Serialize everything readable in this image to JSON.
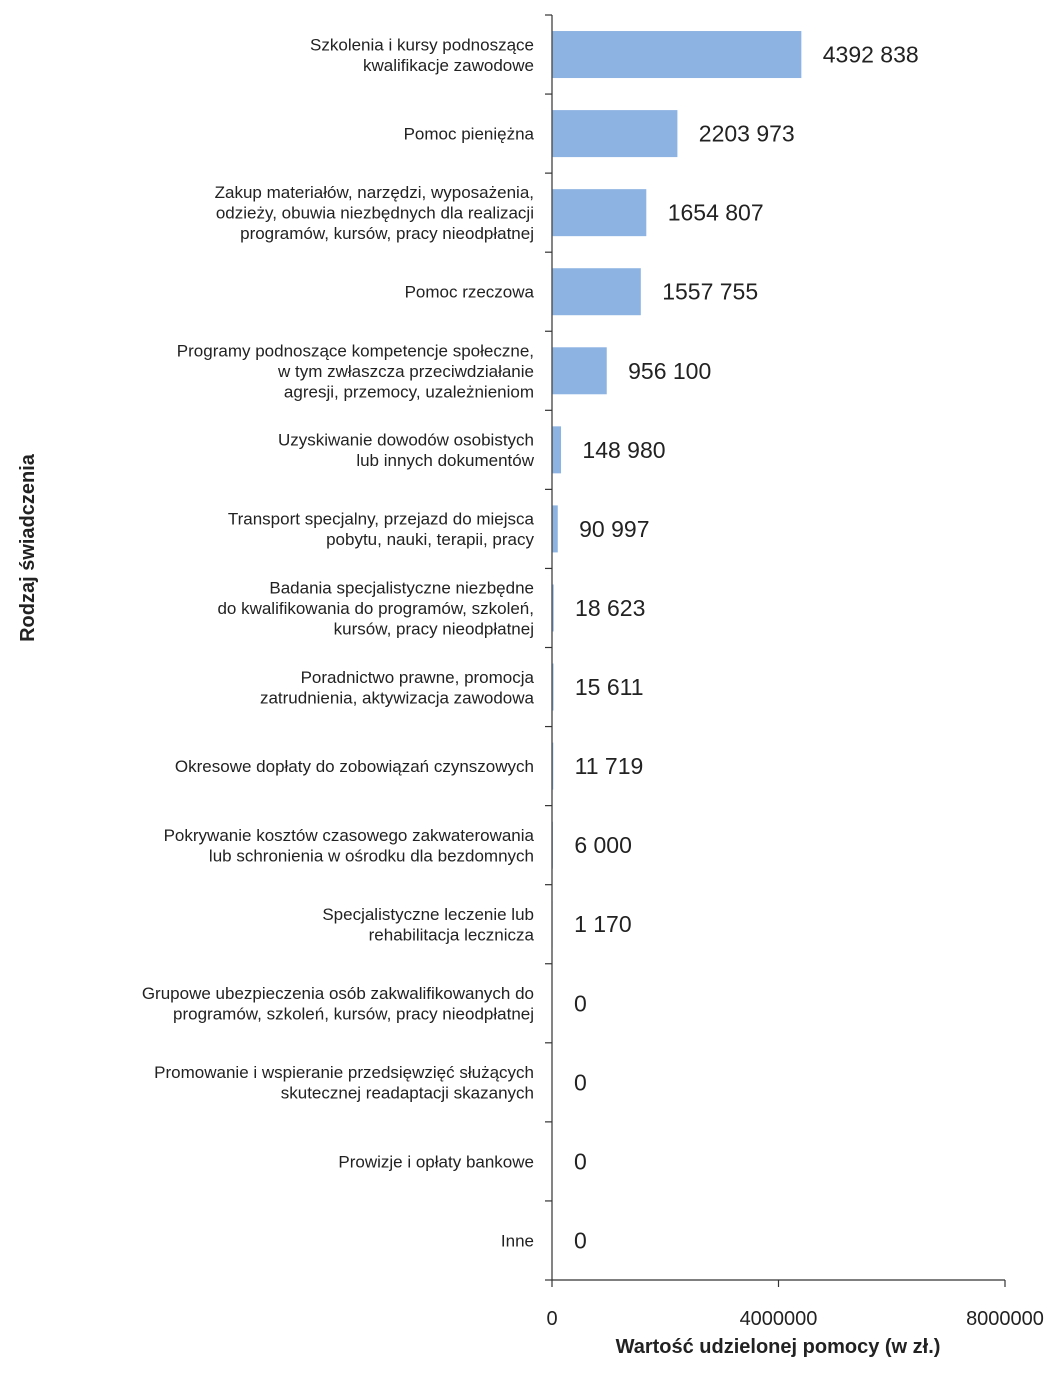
{
  "chart_data": {
    "type": "bar",
    "orientation": "horizontal",
    "xlabel": "Wartość udzielonej pomocy (w zł.)",
    "ylabel": "Rodzaj świadczenia",
    "xlim": [
      0,
      8000000
    ],
    "xticks": [
      "0",
      "4000000",
      "8000000"
    ],
    "bar_color": "#8db3e2",
    "grid": false,
    "categories": [
      "Szkolenia i kursy podnoszące\nkwalifikacje zawodowe",
      "Pomoc pieniężna",
      "Zakup materiałów, narzędzi, wyposażenia,\nodzieży, obuwia niezbędnych dla realizacji\nprogramów, kursów, pracy nieodpłatnej",
      "Pomoc rzeczowa",
      "Programy podnoszące kompetencje społeczne,\nw tym zwłaszcza przeciwdziałanie\nagresji, przemocy, uzależnieniom",
      "Uzyskiwanie dowodów osobistych\nlub innych dokumentów",
      "Transport specjalny, przejazd do miejsca\npobytu, nauki, terapii, pracy",
      "Badania specjalistyczne niezbędne\ndo kwalifikowania do programów, szkoleń,\nkursów, pracy nieodpłatnej",
      "Poradnictwo prawne, promocja\nzatrudnienia, aktywizacja zawodowa",
      "Okresowe dopłaty do zobowiązań czynszowych",
      "Pokrywanie kosztów czasowego zakwaterowania\nlub schronienia w ośrodku dla bezdomnych",
      "Specjalistyczne leczenie lub\nrehabilitacja lecznicza",
      "Grupowe ubezpieczenia osób zakwalifikowanych do\nprogramów, szkoleń, kursów, pracy nieodpłatnej",
      "Promowanie i wspieranie przedsięwzięć służących\nskutecznej readaptacji skazanych",
      "Prowizje i opłaty bankowe",
      "Inne"
    ],
    "values": [
      4392838,
      2203973,
      1654807,
      1557755,
      956100,
      148980,
      90997,
      18623,
      15611,
      11719,
      6000,
      1170,
      0,
      0,
      0,
      0
    ],
    "data_labels": [
      "4392 838",
      "2203 973",
      "1654 807",
      "1557 755",
      "956 100",
      "148 980",
      "90 997",
      "18 623",
      "15 611",
      "11 719",
      "6 000",
      "1 170",
      "0",
      "0",
      "0",
      "0"
    ]
  }
}
